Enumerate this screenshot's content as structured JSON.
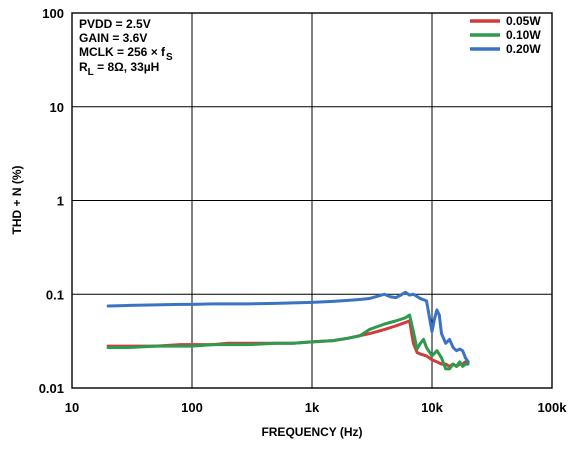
{
  "chart_data": {
    "type": "line",
    "xlabel": "FREQUENCY (Hz)",
    "ylabel": "THD + N (%)",
    "x_scale": "log",
    "y_scale": "log",
    "xlim": [
      10,
      100000
    ],
    "ylim": [
      0.01,
      100
    ],
    "grid": true,
    "x_ticks": [
      {
        "value": 10,
        "label": "10"
      },
      {
        "value": 100,
        "label": "100"
      },
      {
        "value": 1000,
        "label": "1k"
      },
      {
        "value": 10000,
        "label": "10k"
      },
      {
        "value": 100000,
        "label": "100k"
      }
    ],
    "y_ticks": [
      {
        "value": 0.01,
        "label": "0.01"
      },
      {
        "value": 0.1,
        "label": "0.1"
      },
      {
        "value": 1,
        "label": "1"
      },
      {
        "value": 10,
        "label": "10"
      },
      {
        "value": 100,
        "label": "100"
      }
    ],
    "annotations": {
      "line1": "PVDD = 2.5V",
      "line2": "GAIN = 3.6V",
      "line3_main": "MCLK = 256 × f",
      "line3_sub": "S",
      "line4_pre": "R",
      "line4_sub": "L",
      "line4_post": " = 8Ω, 33µH"
    },
    "legend_position": "top-right",
    "series": [
      {
        "name": "0.05W",
        "color": "#d23b3b",
        "x": [
          20,
          30,
          50,
          80,
          100,
          150,
          200,
          300,
          500,
          700,
          1000,
          1500,
          2000,
          3000,
          4000,
          5000,
          6000,
          6500,
          7000,
          7500,
          8000,
          9000,
          10000,
          11000,
          12000,
          13000,
          14000,
          15000,
          16000,
          17000,
          18000,
          19000,
          20000
        ],
        "y": [
          0.028,
          0.028,
          0.028,
          0.029,
          0.029,
          0.029,
          0.03,
          0.03,
          0.03,
          0.03,
          0.031,
          0.032,
          0.034,
          0.038,
          0.042,
          0.046,
          0.05,
          0.052,
          0.03,
          0.024,
          0.023,
          0.022,
          0.02,
          0.019,
          0.018,
          0.018,
          0.017,
          0.018,
          0.017,
          0.018,
          0.018,
          0.019,
          0.019
        ]
      },
      {
        "name": "0.10W",
        "color": "#2e9a4e",
        "x": [
          20,
          30,
          50,
          80,
          100,
          150,
          200,
          300,
          500,
          700,
          1000,
          1500,
          2000,
          2500,
          3000,
          4000,
          5000,
          6000,
          6500,
          7000,
          7500,
          8000,
          8500,
          9000,
          10000,
          11000,
          12000,
          13000,
          14000,
          15000,
          16000,
          17000,
          18000,
          19000,
          20000
        ],
        "y": [
          0.027,
          0.027,
          0.028,
          0.028,
          0.028,
          0.029,
          0.029,
          0.029,
          0.03,
          0.03,
          0.031,
          0.032,
          0.034,
          0.036,
          0.042,
          0.048,
          0.052,
          0.056,
          0.06,
          0.04,
          0.026,
          0.03,
          0.033,
          0.027,
          0.022,
          0.025,
          0.021,
          0.016,
          0.016,
          0.018,
          0.017,
          0.019,
          0.017,
          0.018,
          0.018
        ]
      },
      {
        "name": "0.20W",
        "color": "#3b73c4",
        "x": [
          20,
          30,
          50,
          80,
          100,
          150,
          200,
          300,
          500,
          700,
          1000,
          1500,
          2000,
          2500,
          3000,
          3500,
          4000,
          4500,
          5000,
          5500,
          6000,
          6500,
          7000,
          8000,
          9000,
          10000,
          10500,
          11000,
          11500,
          12000,
          13000,
          14000,
          15000,
          16000,
          17000,
          18000,
          19000,
          20000
        ],
        "y": [
          0.075,
          0.076,
          0.077,
          0.078,
          0.078,
          0.079,
          0.079,
          0.079,
          0.08,
          0.081,
          0.082,
          0.084,
          0.086,
          0.088,
          0.09,
          0.095,
          0.1,
          0.094,
          0.092,
          0.098,
          0.105,
          0.098,
          0.1,
          0.09,
          0.085,
          0.04,
          0.055,
          0.068,
          0.06,
          0.038,
          0.03,
          0.033,
          0.027,
          0.025,
          0.026,
          0.025,
          0.021,
          0.019
        ]
      }
    ]
  }
}
